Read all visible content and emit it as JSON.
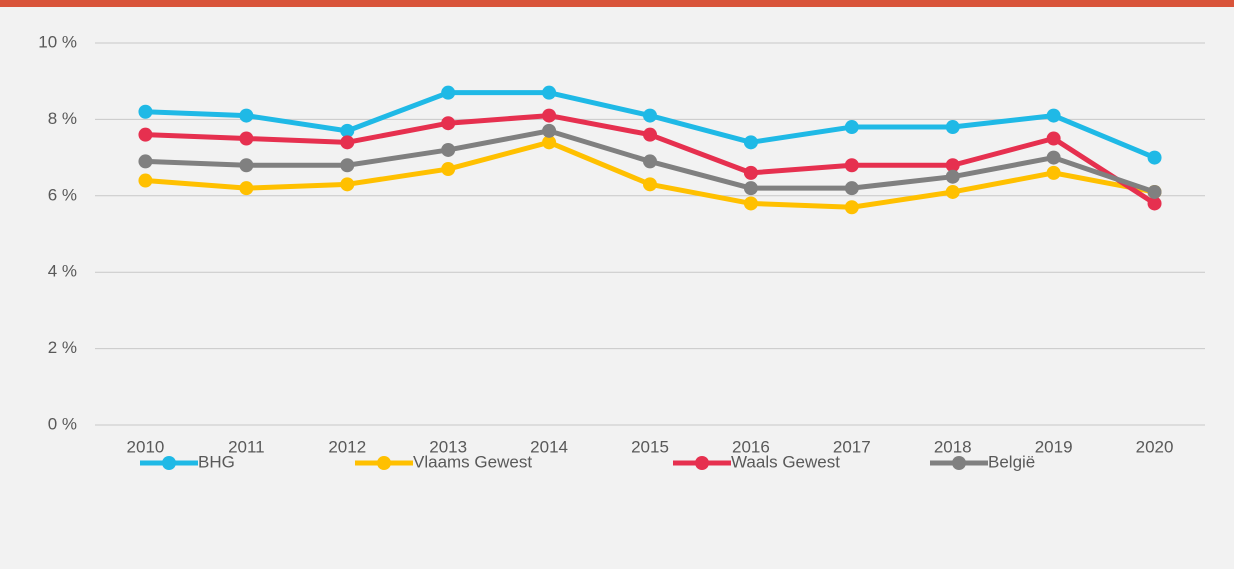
{
  "chart_data": {
    "type": "line",
    "categories": [
      "2010",
      "2011",
      "2012",
      "2013",
      "2014",
      "2015",
      "2016",
      "2017",
      "2018",
      "2019",
      "2020"
    ],
    "series": [
      {
        "name": "BHG",
        "color": "#1fb9e6",
        "values": [
          8.2,
          8.1,
          7.7,
          8.7,
          8.7,
          8.1,
          7.4,
          7.8,
          7.8,
          8.1,
          7.0
        ]
      },
      {
        "name": "Vlaams Gewest",
        "color": "#ffc000",
        "values": [
          6.4,
          6.2,
          6.3,
          6.7,
          7.4,
          6.3,
          5.8,
          5.7,
          6.1,
          6.6,
          6.1
        ]
      },
      {
        "name": "Waals Gewest",
        "color": "#e6304f",
        "values": [
          7.6,
          7.5,
          7.4,
          7.9,
          8.1,
          7.6,
          6.6,
          6.8,
          6.8,
          7.5,
          5.8
        ]
      },
      {
        "name": "België",
        "color": "#808080",
        "values": [
          6.9,
          6.8,
          6.8,
          7.2,
          7.7,
          6.9,
          6.2,
          6.2,
          6.5,
          7.0,
          6.1
        ]
      }
    ],
    "ylim": [
      0,
      10
    ],
    "yticks": [
      {
        "value": 0,
        "label": "0 %"
      },
      {
        "value": 2,
        "label": "2 %"
      },
      {
        "value": 4,
        "label": "4 %"
      },
      {
        "value": 6,
        "label": "6 %"
      },
      {
        "value": 8,
        "label": "8 %"
      },
      {
        "value": 10,
        "label": "10 %"
      }
    ],
    "grid": true,
    "legend": "bottom"
  }
}
